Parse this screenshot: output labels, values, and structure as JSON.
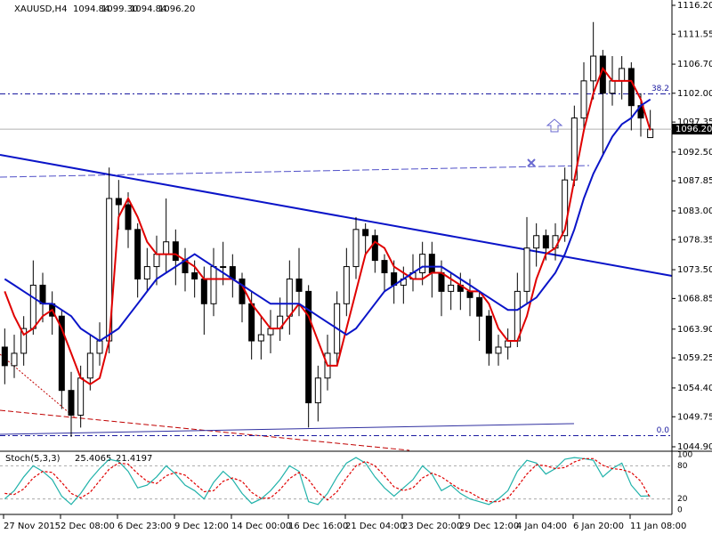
{
  "chart_data": [
    {
      "type": "candlestick",
      "title": "XAUUSD,H4",
      "quote": [
        "1094.84",
        "1099.30",
        "1094.84",
        "1096.20"
      ],
      "categories": [
        "27 Nov 2015",
        null,
        null,
        null,
        null,
        null,
        "2 Dec 08:00",
        null,
        null,
        null,
        null,
        null,
        "6 Dec 23:00",
        null,
        null,
        null,
        null,
        null,
        "9 Dec 12:00",
        null,
        null,
        null,
        null,
        null,
        "14 Dec 00:00",
        null,
        null,
        null,
        null,
        null,
        "16 Dec 16:00",
        null,
        null,
        null,
        null,
        null,
        "21 Dec 04:00",
        null,
        null,
        null,
        null,
        null,
        "23 Dec 20:00",
        null,
        null,
        null,
        null,
        null,
        "29 Dec 12:00",
        null,
        null,
        null,
        null,
        null,
        "4 Jan 04:00",
        null,
        null,
        null,
        null,
        null,
        "6 Jan 20:00",
        null,
        null,
        null,
        null,
        null,
        "11 Jan 08:00",
        null,
        null
      ],
      "open": [
        1061,
        1058,
        1060,
        1064,
        1071,
        1068,
        1066,
        1054,
        1050,
        1056,
        1060,
        1062,
        1085,
        1084,
        1080,
        1072,
        1074,
        1076,
        1078,
        1075,
        1073,
        1072,
        1068,
        1074,
        1074,
        1072,
        1068,
        1062,
        1063,
        1064,
        1066,
        1072,
        1070,
        1052,
        1056,
        1060,
        1068,
        1074,
        1080,
        1079,
        1075,
        1073,
        1071,
        1072,
        1073,
        1076,
        1073,
        1070,
        1071,
        1070,
        1069,
        1066,
        1060,
        1061,
        1062,
        1070,
        1077,
        1079,
        1077,
        1079,
        1088,
        1098,
        1104,
        1108,
        1102,
        1104,
        1106,
        1100,
        1094.84
      ],
      "high": [
        1064,
        1063,
        1066,
        1075,
        1073,
        1070,
        1067,
        1057,
        1058,
        1063,
        1065,
        1090,
        1088,
        1086,
        1081,
        1077,
        1079,
        1085,
        1080,
        1077,
        1075,
        1074,
        1077,
        1078,
        1076,
        1073,
        1070,
        1066,
        1067,
        1069,
        1075,
        1077,
        1071,
        1058,
        1063,
        1070,
        1077,
        1082,
        1081,
        1080,
        1076,
        1075,
        1074,
        1076,
        1078,
        1078,
        1075,
        1073,
        1073,
        1072,
        1070,
        1067,
        1063,
        1064,
        1073,
        1082,
        1081,
        1080,
        1081,
        1090,
        1100,
        1107,
        1113.5,
        1109,
        1108,
        1108,
        1107,
        1102,
        1099.3
      ],
      "low": [
        1055,
        1056,
        1058,
        1063,
        1065,
        1063,
        1051,
        1046.5,
        1048,
        1054,
        1058,
        1060,
        1080,
        1077,
        1069,
        1070,
        1071,
        1073,
        1071,
        1070,
        1069,
        1063,
        1066,
        1071,
        1069,
        1065,
        1059,
        1059,
        1060,
        1062,
        1063,
        1066,
        1048,
        1049,
        1054,
        1058,
        1066,
        1072,
        1076,
        1073,
        1070,
        1068,
        1068,
        1070,
        1071,
        1069,
        1066,
        1067,
        1067,
        1066,
        1062,
        1058,
        1058,
        1059,
        1061,
        1068,
        1074,
        1075,
        1075,
        1078,
        1087,
        1096,
        1101,
        1092,
        1100,
        1101,
        1096,
        1095,
        1094.84
      ],
      "close": [
        1058,
        1060,
        1064,
        1071,
        1068,
        1066,
        1054,
        1050,
        1056,
        1060,
        1062,
        1085,
        1084,
        1080,
        1072,
        1074,
        1076,
        1078,
        1075,
        1073,
        1072,
        1068,
        1074,
        1074,
        1072,
        1068,
        1062,
        1063,
        1064,
        1066,
        1072,
        1070,
        1052,
        1056,
        1060,
        1068,
        1074,
        1080,
        1079,
        1075,
        1073,
        1071,
        1072,
        1073,
        1076,
        1073,
        1070,
        1071,
        1070,
        1069,
        1066,
        1060,
        1061,
        1062,
        1070,
        1077,
        1079,
        1077,
        1079,
        1088,
        1098,
        1104,
        1108,
        1102,
        1104,
        1106,
        1100,
        1098,
        1096.2
      ],
      "overlays": [
        {
          "color": "#e00000",
          "values": [
            1070,
            1066,
            1063,
            1064,
            1066,
            1067,
            1064,
            1060,
            1056,
            1055,
            1056,
            1062,
            1082,
            1085,
            1082,
            1078,
            1076,
            1076,
            1076,
            1075,
            1074,
            1072,
            1072,
            1072,
            1072,
            1071,
            1068,
            1066,
            1064,
            1064,
            1066,
            1068,
            1066,
            1062,
            1058,
            1058,
            1064,
            1070,
            1076,
            1078,
            1077,
            1074,
            1073,
            1072,
            1072,
            1073,
            1073,
            1072,
            1071,
            1070,
            1070,
            1068,
            1064,
            1062,
            1062,
            1066,
            1072,
            1076,
            1077,
            1080,
            1088,
            1096,
            1102,
            1106,
            1104,
            1104,
            1104,
            1101,
            1096
          ]
        },
        {
          "color": "#0a14c8",
          "values": [
            1072,
            1071,
            1070,
            1069,
            1068,
            1068,
            1067,
            1066,
            1064,
            1063,
            1062,
            1063,
            1064,
            1066,
            1068,
            1070,
            1072,
            1073,
            1074,
            1075,
            1076,
            1075,
            1074,
            1073,
            1072,
            1071,
            1070,
            1069,
            1068,
            1068,
            1068,
            1068,
            1067,
            1066,
            1065,
            1064,
            1063,
            1064,
            1066,
            1068,
            1070,
            1071,
            1072,
            1073,
            1074,
            1074,
            1074,
            1073,
            1072,
            1071,
            1070,
            1069,
            1068,
            1067,
            1067,
            1068,
            1069,
            1071,
            1073,
            1076,
            1080,
            1085,
            1089,
            1092,
            1095,
            1097,
            1098,
            1100,
            1101
          ]
        }
      ],
      "ylim": [
        1044.18,
        1117.06
      ],
      "yticks": [
        {
          "value": 1116.2,
          "label": "1116.20"
        },
        {
          "value": 1111.55,
          "label": "1111.55"
        },
        {
          "value": 1106.7,
          "label": "1106.70"
        },
        {
          "value": 1102,
          "label": "1102.00"
        },
        {
          "value": 1097.35,
          "label": "1097.35"
        },
        {
          "value": 1092.5,
          "label": "1092.50"
        },
        {
          "value": 1087.85,
          "label": "1087.85"
        },
        {
          "value": 1083,
          "label": "1083.00"
        },
        {
          "value": 1078.35,
          "label": "1078.35"
        },
        {
          "value": 1073.5,
          "label": "1073.50"
        },
        {
          "value": 1068.85,
          "label": "1068.85"
        },
        {
          "value": 1063.9,
          "label": "1063.90"
        },
        {
          "value": 1059.25,
          "label": "1059.25"
        },
        {
          "value": 1054.4,
          "label": "1054.40"
        },
        {
          "value": 1049.75,
          "label": "1049.75"
        },
        {
          "value": 1044.9,
          "label": "1044.90"
        }
      ],
      "current_price": {
        "value": 1096.2,
        "label": "1096.20"
      },
      "fib_levels": [
        {
          "value": 1101.9,
          "label": "38.2"
        },
        {
          "value": 1046.7,
          "label": "0.0"
        }
      ]
    },
    {
      "type": "line",
      "title": "Stoch(5,3,3)",
      "series": [
        {
          "color": "#20b2aa",
          "values": [
            20,
            35,
            60,
            80,
            70,
            55,
            25,
            10,
            30,
            55,
            75,
            92,
            88,
            70,
            40,
            45,
            60,
            80,
            65,
            45,
            35,
            20,
            50,
            70,
            55,
            30,
            12,
            20,
            35,
            55,
            80,
            70,
            15,
            10,
            30,
            60,
            85,
            95,
            85,
            60,
            40,
            25,
            40,
            55,
            80,
            65,
            35,
            45,
            30,
            20,
            15,
            10,
            20,
            35,
            70,
            90,
            85,
            65,
            75,
            92,
            95,
            93,
            90,
            60,
            75,
            85,
            45,
            25,
            25.4065
          ]
        },
        {
          "color": "#e00000",
          "dashed": true,
          "values": [
            30,
            28,
            38,
            58,
            70,
            68,
            50,
            30,
            22,
            32,
            53,
            74,
            85,
            83,
            66,
            52,
            48,
            62,
            68,
            63,
            48,
            33,
            35,
            52,
            58,
            52,
            32,
            21,
            22,
            37,
            57,
            68,
            55,
            32,
            18,
            33,
            58,
            80,
            88,
            80,
            62,
            42,
            35,
            40,
            58,
            67,
            60,
            48,
            37,
            32,
            22,
            15,
            15,
            22,
            42,
            65,
            82,
            80,
            75,
            77,
            87,
            93,
            93,
            81,
            75,
            73,
            68,
            52,
            21.4197
          ]
        }
      ],
      "ylim": [
        0,
        100
      ],
      "yticks": [
        100,
        80,
        20,
        0
      ]
    }
  ]
}
